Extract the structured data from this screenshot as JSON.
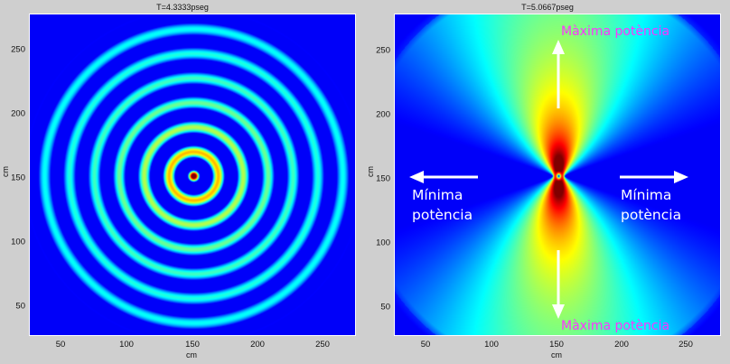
{
  "chart_data": [
    {
      "type": "heatmap",
      "title": "T=4.3333pseg",
      "xlabel": "cm",
      "ylabel": "cm",
      "xlim": [
        25,
        275
      ],
      "ylim": [
        25,
        275
      ],
      "xticks": [
        50,
        100,
        150,
        200,
        250
      ],
      "yticks": [
        50,
        100,
        150,
        200,
        250
      ],
      "description": "Concentric circular wave rings from a single point source centered at (150,150); ~12 rings, colormap jet, strongest (dark red) at center",
      "source_center": [
        150,
        150
      ],
      "colormap": "jet"
    },
    {
      "type": "heatmap",
      "title": "T=5.0667pseg",
      "xlabel": "cm",
      "ylabel": "cm",
      "xlim": [
        25,
        275
      ],
      "ylim": [
        25,
        275
      ],
      "xticks": [
        50,
        100,
        150,
        200,
        250
      ],
      "yticks": [
        50,
        100,
        150,
        200,
        250
      ],
      "description": "Interference pattern from two point sources near (150,150) separated horizontally; maximum intensity along vertical axis, minimum along horizontal axis",
      "source_centers": [
        [
          145,
          150
        ],
        [
          155,
          150
        ]
      ],
      "colormap": "jet",
      "annotations": [
        {
          "text": "Màxima potència",
          "position": "top",
          "color": "#ff33ff"
        },
        {
          "text": "Màxima potència",
          "position": "bottom",
          "color": "#ff33ff"
        },
        {
          "text": "Mínima potència",
          "position": "left",
          "color": "#ffffff"
        },
        {
          "text": "Mínima potència",
          "position": "right",
          "color": "#ffffff"
        }
      ]
    }
  ],
  "left": {
    "title": "T=4.3333pseg",
    "xlabel": "cm",
    "ylabel": "cm",
    "xticks": [
      "50",
      "100",
      "150",
      "200",
      "250"
    ],
    "yticks": [
      "250",
      "200",
      "150",
      "100",
      "50"
    ]
  },
  "right": {
    "title": "T=5.0667pseg",
    "xlabel": "cm",
    "ylabel": "cm",
    "xticks": [
      "50",
      "100",
      "150",
      "200",
      "250"
    ],
    "yticks": [
      "250",
      "200",
      "150",
      "100",
      "50"
    ],
    "annot_top": "Màxima potència",
    "annot_bottom": "Màxima potència",
    "annot_left_1": "Mínima",
    "annot_left_2": "potència",
    "annot_right_1": "Mínima",
    "annot_right_2": "potència"
  }
}
